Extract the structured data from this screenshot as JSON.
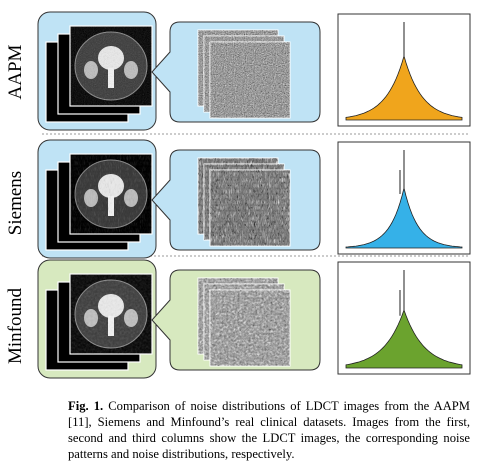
{
  "figure": {
    "rows": [
      {
        "label": "AAPM",
        "panel_fill": "#bfe3f5",
        "callout_fill": "#bfe3f5",
        "curve_color": "#f0a51c"
      },
      {
        "label": "Siemens",
        "panel_fill": "#bfe3f5",
        "callout_fill": "#bfe3f5",
        "curve_color": "#35b1e8"
      },
      {
        "label": "Minfound",
        "panel_fill": "#d7e9bf",
        "callout_fill": "#d7e9bf",
        "curve_color": "#6ba32e"
      }
    ]
  },
  "caption": {
    "label": "Fig. 1.",
    "text": " Comparison of noise distributions of LDCT images from the AAPM [11], Siemens and Minfound’s real clinical datasets. Images from the first, second and third columns show the LDCT images, the corresponding noise patterns and noise distributions, respectively."
  }
}
